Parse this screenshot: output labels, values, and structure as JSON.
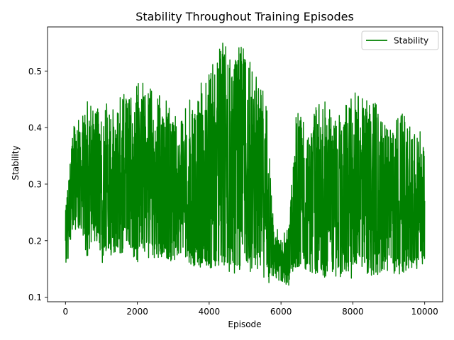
{
  "chart_data": {
    "type": "line",
    "title": "Stability Throughout Training Episodes",
    "xlabel": "Episode",
    "ylabel": "Stability",
    "xlim": [
      -500,
      10500
    ],
    "ylim": [
      0.092,
      0.578
    ],
    "x_ticks": [
      0,
      2000,
      4000,
      6000,
      8000,
      10000
    ],
    "x_tick_labels": [
      "0",
      "2000",
      "4000",
      "6000",
      "8000",
      "10000"
    ],
    "y_ticks": [
      0.1,
      0.2,
      0.3,
      0.4,
      0.5
    ],
    "y_tick_labels": [
      "0.1",
      "0.2",
      "0.3",
      "0.4",
      "0.5"
    ],
    "grid": false,
    "legend_position": "top-right",
    "series": [
      {
        "name": "Stability",
        "color": "#008000",
        "x": [
          0,
          200,
          400,
          600,
          800,
          1000,
          1200,
          1400,
          1600,
          1800,
          2000,
          2200,
          2400,
          2600,
          2800,
          3000,
          3200,
          3400,
          3600,
          3800,
          4000,
          4200,
          4400,
          4600,
          4800,
          5000,
          5200,
          5400,
          5600,
          5800,
          6000,
          6200,
          6400,
          6600,
          6800,
          7000,
          7200,
          7400,
          7600,
          7800,
          8000,
          8200,
          8400,
          8600,
          8800,
          9000,
          9200,
          9400,
          9600,
          9800,
          10000
        ],
        "upper": [
          0.25,
          0.41,
          0.42,
          0.46,
          0.43,
          0.44,
          0.45,
          0.44,
          0.47,
          0.45,
          0.48,
          0.48,
          0.47,
          0.46,
          0.45,
          0.43,
          0.42,
          0.44,
          0.47,
          0.48,
          0.5,
          0.53,
          0.56,
          0.52,
          0.54,
          0.55,
          0.5,
          0.49,
          0.47,
          0.23,
          0.22,
          0.23,
          0.42,
          0.44,
          0.41,
          0.44,
          0.46,
          0.43,
          0.42,
          0.45,
          0.46,
          0.47,
          0.45,
          0.47,
          0.41,
          0.4,
          0.42,
          0.43,
          0.42,
          0.4,
          0.38
        ],
        "lower": [
          0.13,
          0.21,
          0.22,
          0.17,
          0.2,
          0.16,
          0.17,
          0.17,
          0.18,
          0.18,
          0.16,
          0.17,
          0.17,
          0.16,
          0.17,
          0.16,
          0.17,
          0.16,
          0.15,
          0.15,
          0.14,
          0.15,
          0.15,
          0.14,
          0.14,
          0.15,
          0.14,
          0.15,
          0.12,
          0.13,
          0.13,
          0.12,
          0.14,
          0.15,
          0.14,
          0.14,
          0.13,
          0.14,
          0.13,
          0.14,
          0.13,
          0.15,
          0.14,
          0.13,
          0.14,
          0.14,
          0.14,
          0.14,
          0.15,
          0.15,
          0.16
        ],
        "mid": [
          0.22,
          0.3,
          0.31,
          0.3,
          0.31,
          0.3,
          0.3,
          0.29,
          0.3,
          0.31,
          0.31,
          0.31,
          0.3,
          0.3,
          0.3,
          0.29,
          0.28,
          0.29,
          0.29,
          0.3,
          0.3,
          0.31,
          0.33,
          0.32,
          0.32,
          0.33,
          0.31,
          0.3,
          0.27,
          0.17,
          0.16,
          0.16,
          0.27,
          0.28,
          0.27,
          0.28,
          0.28,
          0.28,
          0.27,
          0.28,
          0.28,
          0.3,
          0.29,
          0.29,
          0.27,
          0.27,
          0.27,
          0.27,
          0.27,
          0.27,
          0.28
        ]
      }
    ]
  }
}
